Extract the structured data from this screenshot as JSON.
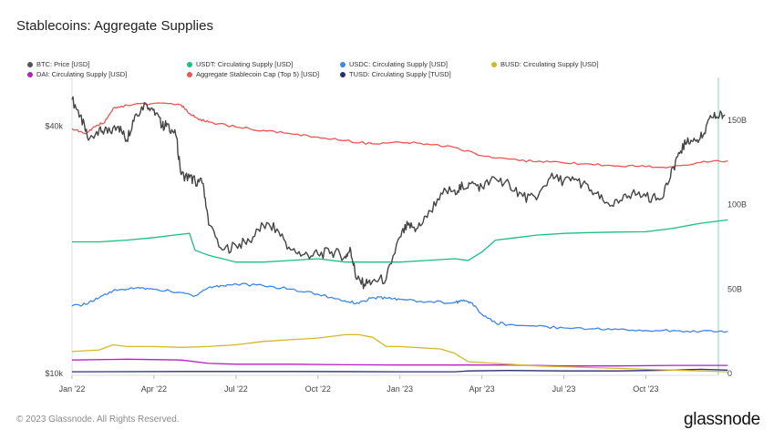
{
  "title": "Stablecoins: Aggregate Supplies",
  "footer": {
    "copyright": "© 2023 Glassnode. All Rights Reserved.",
    "logo": "glassnode"
  },
  "chart_data": {
    "type": "line",
    "title": "Stablecoins: Aggregate Supplies",
    "x_range": [
      "2022-01-01",
      "2023-12-31"
    ],
    "x_ticks": [
      "Jan '22",
      "Apr '22",
      "Jul '22",
      "Oct '22",
      "Jan '23",
      "Apr '23",
      "Jul '23",
      "Oct '23"
    ],
    "x_tick_months": [
      0,
      3,
      6,
      9,
      12,
      15,
      18,
      21
    ],
    "left_axis": {
      "scale": "log",
      "range": [
        10000,
        50000
      ],
      "ticks": [
        40000,
        10000
      ],
      "tick_labels": [
        "$40k",
        "$10k"
      ]
    },
    "right_axis": {
      "scale": "linear",
      "range": [
        0,
        170
      ],
      "unit": "B USD",
      "ticks": [
        0,
        50,
        100,
        150
      ],
      "tick_labels": [
        "0",
        "50B",
        "100B",
        "150B"
      ]
    },
    "legend": [
      {
        "name": "BTC: Price [USD]",
        "color": "#555555"
      },
      {
        "name": "USDT: Circulating Supply [USD]",
        "color": "#1abf82"
      },
      {
        "name": "USDC: Circulating Supply [USD]",
        "color": "#3f86ea"
      },
      {
        "name": "BUSD: Circulating Supply [USD]",
        "color": "#d4b82b"
      },
      {
        "name": "DAI: Circulating Supply [USD]",
        "color": "#b61fc4"
      },
      {
        "name": "Aggregate Stablecoin Cap (Top 5) [USD]",
        "color": "#ee5555"
      },
      {
        "name": "TUSD: Circulating Supply [TUSD]",
        "color": "#2a2f6e"
      }
    ],
    "series": [
      {
        "name": "BTC: Price [USD]",
        "axis": "left",
        "color": "#444444",
        "x": [
          0,
          0.3,
          0.6,
          1,
          1.3,
          1.7,
          2,
          2.3,
          2.7,
          3,
          3.3,
          3.5,
          3.8,
          4,
          4.3,
          4.5,
          4.8,
          5,
          5.5,
          6,
          6.5,
          7,
          7.5,
          8,
          8.5,
          9,
          9.5,
          10,
          10.2,
          10.4,
          10.7,
          11,
          11.5,
          12,
          12.3,
          12.6,
          13,
          13.5,
          14,
          14.3,
          14.6,
          15,
          15.5,
          16,
          16.5,
          17,
          17.5,
          18,
          18.5,
          19,
          19.5,
          20,
          20.5,
          21,
          21.5,
          21.9,
          22.2,
          22.5,
          22.8,
          23.1,
          23.4,
          23.7,
          23.9
        ],
        "values": [
          46500,
          42500,
          37000,
          39500,
          38500,
          40000,
          37000,
          42500,
          45500,
          44000,
          40000,
          40500,
          38000,
          30500,
          30000,
          29500,
          29000,
          23000,
          20000,
          20500,
          21000,
          23000,
          22500,
          20000,
          19500,
          19500,
          19800,
          19300,
          20000,
          17000,
          16500,
          16800,
          17000,
          21500,
          23000,
          22500,
          24000,
          27500,
          28000,
          28500,
          29000,
          28500,
          29800,
          29000,
          27000,
          26500,
          30000,
          29500,
          29500,
          28000,
          26000,
          26000,
          27500,
          27000,
          26500,
          30000,
          34500,
          36500,
          37000,
          38000,
          42000,
          42500,
          42500
        ]
      },
      {
        "name": "USDT: Circulating Supply [USD]",
        "axis": "right",
        "color": "#1abf82",
        "x": [
          0,
          1,
          2,
          3,
          4,
          4.3,
          4.5,
          5,
          6,
          7,
          8,
          9,
          10,
          11,
          12,
          13,
          14,
          14.5,
          15,
          15.5,
          16,
          17,
          18,
          19,
          20,
          21,
          22,
          23,
          24
        ],
        "values": [
          78,
          78,
          79,
          80.5,
          82.5,
          83,
          73,
          70,
          66,
          66,
          67,
          68,
          66,
          66,
          66,
          67,
          68,
          67,
          72,
          79,
          80,
          82,
          83,
          83.5,
          83.8,
          84,
          86,
          89,
          91
        ]
      },
      {
        "name": "USDC: Circulating Supply [USD]",
        "axis": "right",
        "color": "#3f86ea",
        "x": [
          0,
          0.5,
          1,
          1.5,
          2,
          2.5,
          3,
          4,
          4.5,
          5,
          5.5,
          6,
          7,
          8,
          9,
          10,
          10.5,
          11,
          11.5,
          12,
          13,
          14,
          14.3,
          14.6,
          15,
          15.5,
          16,
          17,
          18,
          19,
          20,
          21,
          22,
          23,
          24
        ],
        "values": [
          40,
          41,
          45,
          49,
          50,
          50.5,
          50,
          48,
          46,
          51,
          52,
          53,
          52,
          50,
          47,
          43,
          41.5,
          45,
          44.5,
          44,
          42.5,
          42,
          43,
          42,
          35,
          30,
          29,
          28,
          27,
          26.5,
          26,
          25.5,
          25.5,
          25,
          25
        ]
      },
      {
        "name": "BUSD: Circulating Supply [USD]",
        "axis": "right",
        "color": "#d4b82b",
        "x": [
          0,
          1,
          1.5,
          2,
          3,
          4,
          5,
          6,
          7,
          8,
          9,
          10,
          10.5,
          11,
          11.5,
          12,
          13,
          13.5,
          14,
          14.5,
          15,
          16,
          17,
          18,
          19,
          20,
          21,
          22,
          23,
          24
        ],
        "values": [
          13,
          14,
          17,
          16,
          16,
          15.5,
          16,
          17,
          19,
          20,
          21,
          23,
          23,
          21.5,
          16,
          16,
          15,
          14.5,
          12,
          7,
          6.5,
          5.5,
          4.5,
          4,
          3.5,
          3,
          2.5,
          2,
          1.5,
          1
        ]
      },
      {
        "name": "DAI: Circulating Supply [USD]",
        "axis": "right",
        "color": "#b61fc4",
        "x": [
          0,
          2,
          4,
          5,
          6,
          8,
          10,
          12,
          14,
          16,
          18,
          20,
          22,
          24
        ],
        "values": [
          8,
          8.5,
          8,
          6,
          5.5,
          5.5,
          5.2,
          5,
          5,
          5,
          4.5,
          4.5,
          4.8,
          4.8
        ]
      },
      {
        "name": "Aggregate Stablecoin Cap (Top 5) [USD]",
        "axis": "right",
        "color": "#ee5555",
        "x": [
          0,
          0.5,
          0.9,
          1.2,
          1.5,
          2,
          3,
          4,
          4.3,
          4.6,
          5,
          6,
          7,
          8,
          9,
          10,
          11,
          12,
          13,
          14,
          15,
          16,
          17,
          18,
          19,
          20,
          21,
          22,
          23,
          24
        ],
        "values": [
          145,
          142,
          147,
          149,
          157,
          159,
          160,
          159,
          154,
          151,
          149,
          146,
          144,
          142,
          140,
          138,
          136,
          137,
          136,
          134,
          129,
          127,
          125.5,
          124.8,
          124,
          123,
          122.5,
          122.5,
          125,
          126
        ]
      },
      {
        "name": "TUSD: Circulating Supply [TUSD]",
        "axis": "right",
        "color": "#2a2f6e",
        "x": [
          0,
          4,
          8,
          12,
          14,
          14.5,
          16,
          18,
          20,
          22,
          23,
          24
        ],
        "values": [
          1,
          1.2,
          1.2,
          1,
          1,
          1.5,
          1.8,
          1.5,
          1.5,
          2,
          2.5,
          2
        ]
      }
    ]
  }
}
